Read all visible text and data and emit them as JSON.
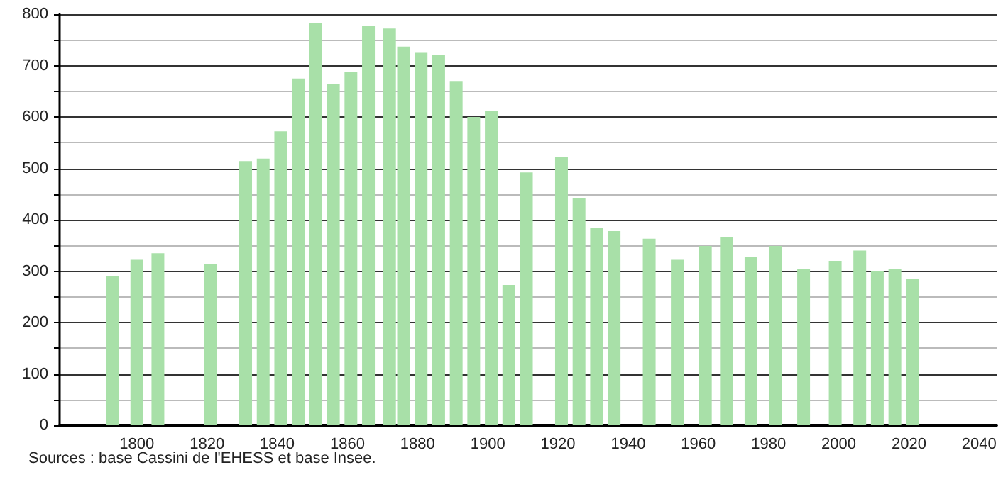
{
  "chart_data": {
    "type": "bar",
    "x": [
      1793,
      1800,
      1806,
      1821,
      1831,
      1836,
      1841,
      1846,
      1851,
      1856,
      1861,
      1866,
      1872,
      1876,
      1881,
      1886,
      1891,
      1896,
      1901,
      1906,
      1911,
      1921,
      1926,
      1931,
      1936,
      1946,
      1954,
      1962,
      1968,
      1975,
      1982,
      1990,
      1999,
      2006,
      2011,
      2016,
      2021
    ],
    "values": [
      290,
      322,
      335,
      313,
      514,
      519,
      572,
      675,
      782,
      665,
      688,
      778,
      772,
      737,
      725,
      720,
      670,
      600,
      612,
      273,
      492,
      522,
      442,
      385,
      378,
      363,
      322,
      349,
      366,
      327,
      349,
      305,
      320,
      340,
      300,
      305,
      285
    ],
    "color": "#a8e0a8",
    "xlim": [
      1778,
      2045
    ],
    "xticks": [
      1800,
      1820,
      1840,
      1860,
      1880,
      1900,
      1920,
      1940,
      1960,
      1980,
      2000,
      2020,
      2040
    ],
    "ylim": [
      0,
      800
    ],
    "yticks": [
      0,
      {
        "value": 50,
        "label": null
      },
      100,
      {
        "value": 150,
        "label": null
      },
      200,
      {
        "value": 250,
        "label": null
      },
      300,
      {
        "value": 350,
        "label": null
      },
      400,
      {
        "value": 450,
        "label": null
      },
      500,
      {
        "value": 550,
        "label": null
      },
      600,
      {
        "value": 650,
        "label": null
      },
      700,
      {
        "value": 750,
        "label": null
      },
      800
    ],
    "grid": "y",
    "annotations": [
      "Sources : base Cassini de l'EHESS et base Insee."
    ]
  }
}
